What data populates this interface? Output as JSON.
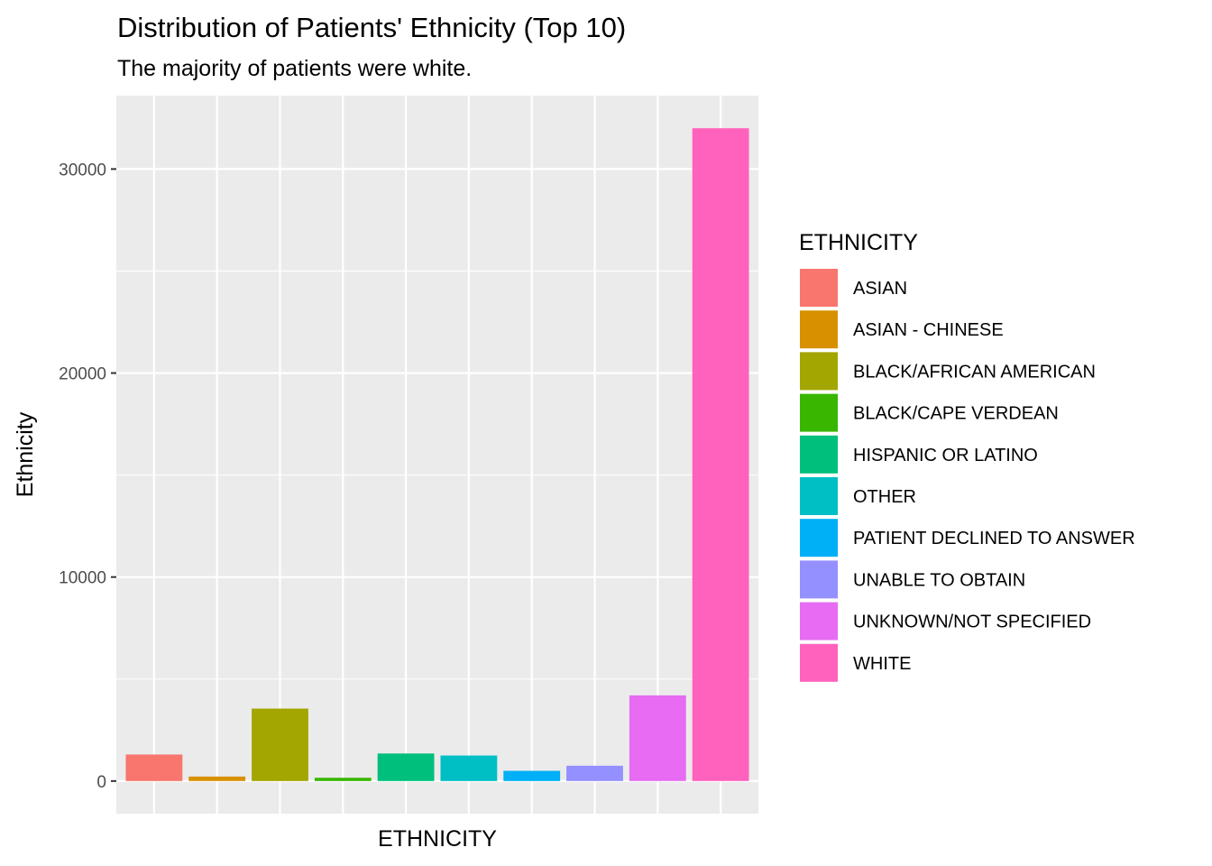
{
  "chart_data": {
    "type": "bar",
    "title": "Distribution of Patients' Ethnicity (Top 10)",
    "subtitle": "The majority of patients were white.",
    "xlabel": "ETHNICITY",
    "ylabel": "Ethnicity",
    "ylim": [
      -1600,
      33600
    ],
    "yticks": [
      0,
      10000,
      20000,
      30000
    ],
    "ytick_labels": [
      "0",
      "10000",
      "20000",
      "30000"
    ],
    "grid": true,
    "legend": {
      "title": "ETHNICITY",
      "position": "right"
    },
    "categories": [
      "ASIAN",
      "ASIAN - CHINESE",
      "BLACK/AFRICAN AMERICAN",
      "BLACK/CAPE VERDEAN",
      "HISPANIC OR LATINO",
      "OTHER",
      "PATIENT DECLINED TO ANSWER",
      "UNABLE TO OBTAIN",
      "UNKNOWN/NOT SPECIFIED",
      "WHITE"
    ],
    "values": [
      1300,
      220,
      3550,
      160,
      1350,
      1250,
      500,
      750,
      4200,
      32000
    ],
    "colors": [
      "#F8766D",
      "#D89000",
      "#A3A500",
      "#39B600",
      "#00BF7D",
      "#00BFC4",
      "#00B0F6",
      "#9590FF",
      "#E76BF3",
      "#FF62BC"
    ],
    "panel_background": "#EBEBEB",
    "gridline_color": "#FFFFFF"
  }
}
